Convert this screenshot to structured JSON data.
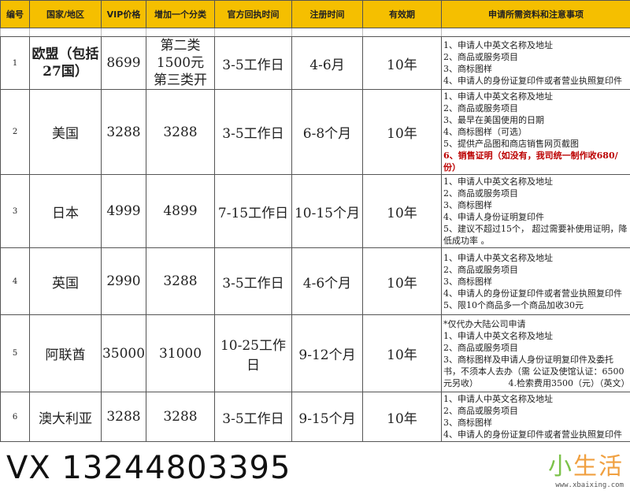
{
  "headers": [
    "编号",
    "国家/地区",
    "VIP价格",
    "增加一个分类",
    "官方回执时间",
    "注册时间",
    "有效期",
    "申请所需资料和注意事项"
  ],
  "rows": [
    {
      "no": "1",
      "country": "欧盟（包括27国）",
      "vip": "8699",
      "extra": "第二类1500元第三类开",
      "reply": "3-5工作日",
      "reg": "4-6月",
      "valid": "10年",
      "notes": [
        "1、申请人中英文名称及地址",
        "2、商品或服务项目",
        "3、商标图样",
        "4、申请人的身份证复印件或者营业执照复印件"
      ]
    },
    {
      "no": "2",
      "country": "美国",
      "vip": "3288",
      "extra": "3288",
      "reply": "3-5工作日",
      "reg": "6-8个月",
      "valid": "10年",
      "notes": [
        "1、申请人中英文名称及地址",
        "2、商品或服务项目",
        "3、最早在美国使用的日期",
        "4、商标图样（可选）",
        "5、提供产品图和商店销售网页截图"
      ],
      "note_red": "6、销售证明（如没有，我司统一制作收680/份）"
    },
    {
      "no": "3",
      "country": "日本",
      "vip": "4999",
      "extra": "4899",
      "reply": "7-15工作日",
      "reg": "10-15个月",
      "valid": "10年",
      "notes": [
        "1、申请人中英文名称及地址",
        "2、商品或服务项目",
        "3、商标图样",
        "4、申请人身份证明复印件",
        "5、建议不超过15个， 超过需要补使用证明，降低成功率 。"
      ]
    },
    {
      "no": "4",
      "country": "英国",
      "vip": "2990",
      "extra": "3288",
      "reply": "3-5工作日",
      "reg": "4-6个月",
      "valid": "10年",
      "notes": [
        "1、申请人中英文名称及地址",
        "2、商品或服务项目",
        "3、商标图样",
        "4、申请人的身份证复印件或者营业执照复印件",
        "5、限10个商品多一个商品加收30元"
      ]
    },
    {
      "no": "5",
      "country": "阿联酋",
      "vip": "35000",
      "extra": "31000",
      "reply": "10-25工作日",
      "reg": "9-12个月",
      "valid": "10年",
      "notes": [
        "*仅代办大陆公司申请",
        "1、申请人中英文名称及地址",
        "2、商品或服务项目",
        "3、商标图样及申请人身份证明复印件及委托书，不须本人去办（需 公证及使馆认证：6500元另收）　　　　4.检索费用3500（元）（英文）"
      ]
    },
    {
      "no": "6",
      "country": "澳大利亚",
      "vip": "3288",
      "extra": "3288",
      "reply": "3-5工作日",
      "reg": "9-15个月",
      "valid": "10年",
      "notes": [
        "1、申请人中英文名称及地址",
        "2、商品或服务项目",
        "3、商标图样",
        "4、申请人的身份证复印件或者营业执照复印件"
      ]
    }
  ],
  "watermark": "VX 13244803395",
  "logo": {
    "text_a": "小",
    "text_b": "生活",
    "url": "www.xbaixing.com"
  }
}
